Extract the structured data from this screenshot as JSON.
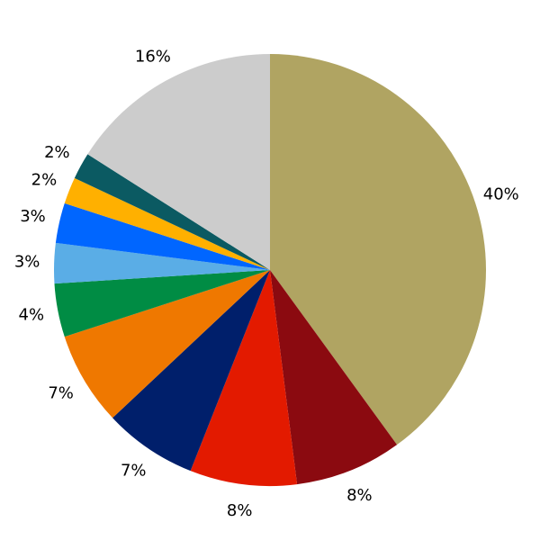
{
  "chart_data": {
    "type": "pie",
    "values": [
      40,
      8,
      8,
      7,
      7,
      4,
      3,
      3,
      2,
      2,
      16
    ],
    "value_labels": [
      "40%",
      "8%",
      "8%",
      "7%",
      "7%",
      "4%",
      "3%",
      "3%",
      "2%",
      "2%",
      "16%"
    ],
    "colors": [
      "#b0a462",
      "#8b0a10",
      "#e31a00",
      "#001f6b",
      "#ef7800",
      "#008c44",
      "#5aade6",
      "#0066ff",
      "#ffb000",
      "#0b5a62",
      "#cccccc"
    ]
  }
}
